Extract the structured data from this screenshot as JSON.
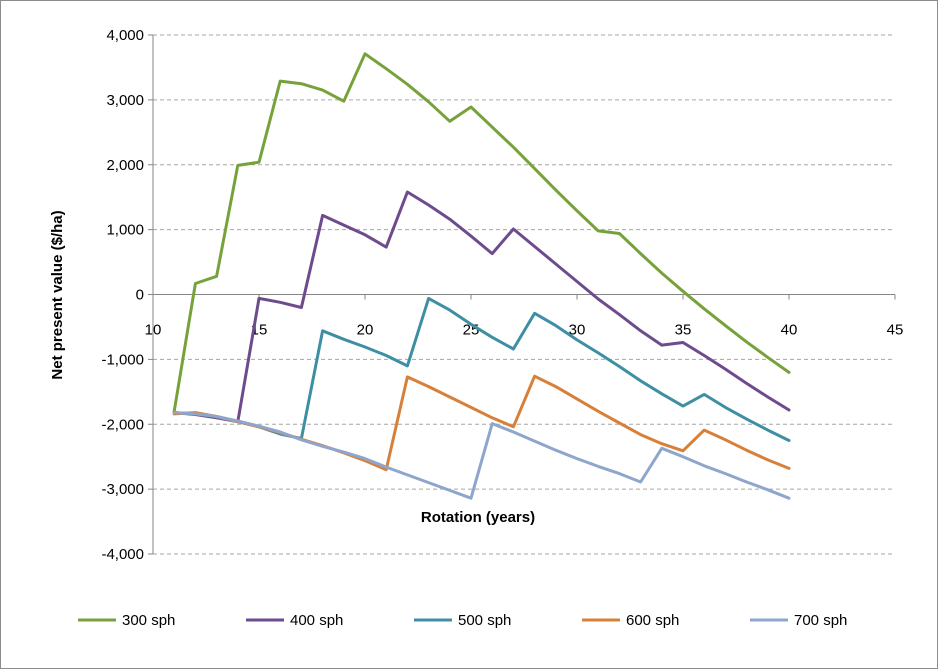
{
  "chart_data": {
    "type": "line",
    "xlabel": "Rotation (years)",
    "ylabel": "Net present value ($/ha)",
    "xlim": [
      10,
      45
    ],
    "ylim": [
      -4000,
      4000
    ],
    "x_ticks": [
      10,
      15,
      20,
      25,
      30,
      35,
      40,
      45
    ],
    "y_ticks": [
      4000,
      3000,
      2000,
      1000,
      0,
      -1000,
      -2000,
      -3000,
      -4000
    ],
    "x_tick_labels": [
      "10",
      "15",
      "20",
      "25",
      "30",
      "35",
      "40",
      "45"
    ],
    "y_tick_labels": [
      "4,000",
      "3,000",
      "2,000",
      "1,000",
      "0",
      "-1,000",
      "-2,000",
      "-3,000",
      "-4,000"
    ],
    "grid": "horizontal dashed",
    "legend_position": "bottom",
    "series": [
      {
        "name": "300 sph",
        "color": "#77a23b",
        "x": [
          11,
          12,
          13,
          14,
          15,
          16,
          17,
          18,
          19,
          20,
          21,
          22,
          23,
          24,
          25,
          26,
          27,
          28,
          29,
          30,
          31,
          32,
          33,
          34,
          35,
          36,
          37,
          38,
          39,
          40
        ],
        "y": [
          -1800,
          170,
          280,
          1990,
          2040,
          3290,
          3250,
          3150,
          2980,
          3710,
          3480,
          3240,
          2970,
          2670,
          2890,
          2580,
          2270,
          1940,
          1610,
          1290,
          980,
          940,
          630,
          330,
          50,
          -220,
          -480,
          -730,
          -970,
          -1200
        ]
      },
      {
        "name": "400 sph",
        "color": "#6d4b8d",
        "x": [
          11,
          12,
          13,
          14,
          15,
          16,
          17,
          18,
          19,
          20,
          21,
          22,
          23,
          24,
          25,
          26,
          27,
          28,
          29,
          30,
          31,
          32,
          33,
          34,
          35,
          36,
          37,
          38,
          39,
          40
        ],
        "y": [
          -1820,
          -1850,
          -1900,
          -1960,
          -60,
          -120,
          -200,
          1220,
          1070,
          920,
          730,
          1580,
          1380,
          1160,
          900,
          630,
          1010,
          740,
          470,
          200,
          -70,
          -310,
          -560,
          -780,
          -740,
          -940,
          -1150,
          -1370,
          -1580,
          -1780
        ]
      },
      {
        "name": "500 sph",
        "color": "#3e8fa3",
        "x": [
          11,
          12,
          13,
          14,
          15,
          16,
          17,
          18,
          19,
          20,
          21,
          22,
          23,
          24,
          25,
          26,
          27,
          28,
          29,
          30,
          31,
          32,
          33,
          34,
          35,
          36,
          37,
          38,
          39,
          40
        ],
        "y": [
          -1820,
          -1840,
          -1880,
          -1960,
          -2040,
          -2150,
          -2220,
          -560,
          -690,
          -810,
          -940,
          -1100,
          -60,
          -240,
          -460,
          -660,
          -840,
          -290,
          -480,
          -700,
          -900,
          -1110,
          -1330,
          -1530,
          -1720,
          -1540,
          -1740,
          -1920,
          -2090,
          -2250
        ]
      },
      {
        "name": "600 sph",
        "color": "#d7803a",
        "x": [
          11,
          12,
          13,
          14,
          15,
          16,
          17,
          18,
          19,
          20,
          21,
          22,
          23,
          24,
          25,
          26,
          27,
          28,
          29,
          30,
          31,
          32,
          33,
          34,
          35,
          36,
          37,
          38,
          39,
          40
        ],
        "y": [
          -1840,
          -1820,
          -1880,
          -1960,
          -2040,
          -2130,
          -2230,
          -2330,
          -2440,
          -2560,
          -2700,
          -1270,
          -1420,
          -1580,
          -1740,
          -1900,
          -2040,
          -1260,
          -1420,
          -1610,
          -1800,
          -1980,
          -2160,
          -2300,
          -2410,
          -2090,
          -2240,
          -2400,
          -2550,
          -2680
        ]
      },
      {
        "name": "700 sph",
        "color": "#8ea5cc",
        "x": [
          11,
          12,
          13,
          14,
          15,
          16,
          17,
          18,
          19,
          20,
          21,
          22,
          23,
          24,
          25,
          26,
          27,
          28,
          29,
          30,
          31,
          32,
          33,
          34,
          35,
          36,
          37,
          38,
          39,
          40
        ],
        "y": [
          -1820,
          -1840,
          -1880,
          -1950,
          -2030,
          -2120,
          -2240,
          -2340,
          -2430,
          -2530,
          -2660,
          -2780,
          -2900,
          -3020,
          -3140,
          -1990,
          -2120,
          -2260,
          -2400,
          -2530,
          -2650,
          -2760,
          -2890,
          -2370,
          -2500,
          -2640,
          -2760,
          -2890,
          -3010,
          -3140
        ]
      }
    ]
  }
}
